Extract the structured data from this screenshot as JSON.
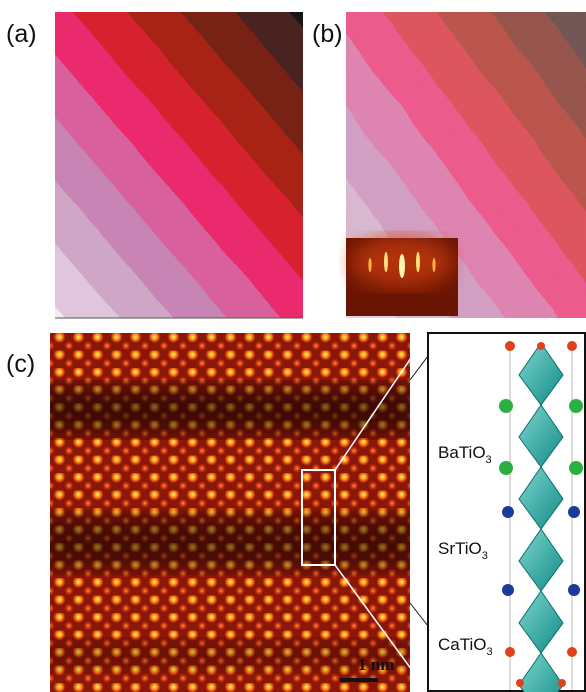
{
  "panels": {
    "a": {
      "label": "(a)"
    },
    "b": {
      "label": "(b)"
    },
    "c": {
      "label": "(c)",
      "scale_bar": "1 nm",
      "layers": [
        {
          "name": "BaTiO",
          "subscript": "3"
        },
        {
          "name": "SrTiO",
          "subscript": "3"
        },
        {
          "name": "CaTiO",
          "subscript": "3"
        }
      ]
    }
  }
}
